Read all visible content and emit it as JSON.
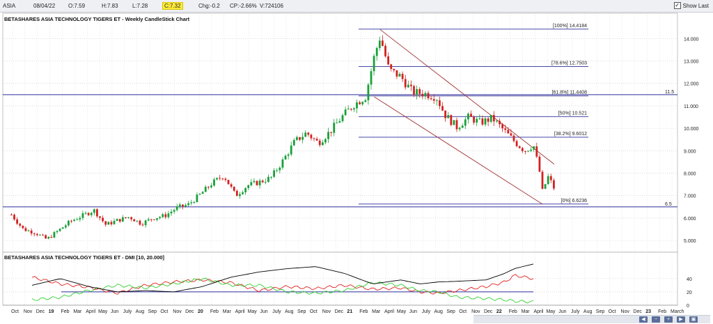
{
  "header": {
    "symbol": "ASIA",
    "date": "08/04/22",
    "open": "O:7.59",
    "high": "H:7.83",
    "low": "L:7.28",
    "close": "C:7.32",
    "change": "Chg:-0.2",
    "change_pct": "CP:-2.66%",
    "volume": "V:724106",
    "show_last_label": "Show Last"
  },
  "colors": {
    "up": "#18a038",
    "down": "#d42020",
    "hline": "#2b2b9c",
    "channel": "#a03030",
    "plus_di": "#e02020",
    "minus_di": "#30d030",
    "adx": "#000000"
  },
  "chart_data": [
    {
      "type": "candlestick",
      "title": "BETASHARES ASIA TECHNOLOGY TIGERS ET - Weekly CandleStick Chart",
      "ylim": [
        4.6,
        14.6
      ],
      "y_ticks": [
        "5.000",
        "6.000",
        "7.000",
        "8.000",
        "9.000",
        "10.000",
        "11.000",
        "12.000",
        "13.000",
        "14.000"
      ],
      "x_ticks": [
        "Oct",
        "Nov",
        "Dec",
        "19",
        "Feb",
        "Mar",
        "April",
        "May",
        "Jun",
        "July",
        "Aug",
        "Sep",
        "Oct",
        "Nov",
        "Dec",
        "20",
        "Feb",
        "Mar",
        "April",
        "May",
        "Jun",
        "July",
        "Aug",
        "Sep",
        "Oct",
        "Nov",
        "Dec",
        "21",
        "Feb",
        "Mar",
        "April",
        "May",
        "Jun",
        "July",
        "Aug",
        "Sep",
        "Oct",
        "Nov",
        "Dec",
        "22",
        "Feb",
        "Mar",
        "April",
        "May",
        "Jun",
        "July",
        "Aug",
        "Sep",
        "Oct",
        "Nov",
        "Dec",
        "23",
        "Feb",
        "March"
      ],
      "bold_ticks": [
        "19",
        "20",
        "21",
        "22",
        "23"
      ],
      "close_trace": [
        [
          "2018-09-28",
          6.15
        ],
        [
          "2018-10-26",
          5.5
        ],
        [
          "2018-11-23",
          5.35
        ],
        [
          "2018-12-21",
          5.05
        ],
        [
          "2019-01-18",
          5.45
        ],
        [
          "2019-02-15",
          5.85
        ],
        [
          "2019-03-15",
          6.1
        ],
        [
          "2019-04-12",
          6.35
        ],
        [
          "2019-05-10",
          5.7
        ],
        [
          "2019-06-07",
          5.9
        ],
        [
          "2019-07-05",
          6.05
        ],
        [
          "2019-08-02",
          5.75
        ],
        [
          "2019-08-30",
          6.0
        ],
        [
          "2019-09-27",
          6.1
        ],
        [
          "2019-10-25",
          6.45
        ],
        [
          "2019-11-22",
          6.6
        ],
        [
          "2019-12-20",
          7.05
        ],
        [
          "2020-01-17",
          7.55
        ],
        [
          "2020-02-14",
          7.9
        ],
        [
          "2020-03-13",
          7.0
        ],
        [
          "2020-04-10",
          7.45
        ],
        [
          "2020-05-08",
          7.6
        ],
        [
          "2020-06-05",
          7.8
        ],
        [
          "2020-07-03",
          8.55
        ],
        [
          "2020-07-31",
          9.4
        ],
        [
          "2020-08-28",
          9.8
        ],
        [
          "2020-09-25",
          9.35
        ],
        [
          "2020-10-23",
          9.85
        ],
        [
          "2020-11-20",
          10.5
        ],
        [
          "2020-12-18",
          11.05
        ],
        [
          "2021-01-15",
          11.4
        ],
        [
          "2021-02-05",
          13.2
        ],
        [
          "2021-02-19",
          14.1
        ],
        [
          "2021-03-12",
          12.6
        ],
        [
          "2021-04-09",
          12.3
        ],
        [
          "2021-05-07",
          11.6
        ],
        [
          "2021-06-04",
          11.55
        ],
        [
          "2021-07-02",
          11.4
        ],
        [
          "2021-07-23",
          10.6
        ],
        [
          "2021-08-20",
          10.05
        ],
        [
          "2021-09-17",
          10.5
        ],
        [
          "2021-10-15",
          10.25
        ],
        [
          "2021-11-12",
          10.45
        ],
        [
          "2021-12-10",
          9.9
        ],
        [
          "2022-01-07",
          9.35
        ],
        [
          "2022-01-28",
          9.0
        ],
        [
          "2022-02-18",
          9.25
        ],
        [
          "2022-03-04",
          8.1
        ],
        [
          "2022-03-11",
          7.2
        ],
        [
          "2022-03-25",
          7.85
        ],
        [
          "2022-04-08",
          7.32
        ]
      ],
      "horizontal_lines": [
        {
          "label": "11.5",
          "value": 11.5
        },
        {
          "label": "6.5",
          "value": 6.5
        }
      ],
      "fibonacci": {
        "levels": [
          {
            "label": "[100%] 14.4184",
            "value": 14.4184
          },
          {
            "label": "[78.6%] 12.7503",
            "value": 12.7503
          },
          {
            "label": "[61.8%] 11.4408",
            "value": 11.4408
          },
          {
            "label": "[50%] 10.521",
            "value": 10.521
          },
          {
            "label": "[38.2%] 9.6012",
            "value": 9.6012
          },
          {
            "label": "[0%] 6.6236",
            "value": 6.6236
          }
        ]
      },
      "channel": {
        "upper": [
          [
            "2021-02-19",
            14.4
          ],
          [
            "2022-04-08",
            8.4
          ]
        ],
        "lower": [
          [
            "2021-02-05",
            11.4
          ],
          [
            "2022-03-11",
            6.62
          ]
        ]
      }
    },
    {
      "type": "line",
      "title": "BETASHARES ASIA TECHNOLOGY TIGERS ET - DMI [10, 20.000]",
      "ylim": [
        0,
        65
      ],
      "y_ticks": [
        "0",
        "20",
        "40"
      ],
      "threshold": 20,
      "series": [
        {
          "values": [
            [
              0,
              42
            ],
            [
              3,
              32
            ],
            [
              6,
              27
            ],
            [
              9,
              18
            ],
            [
              12,
              30
            ],
            [
              15,
              35
            ],
            [
              18,
              38
            ],
            [
              21,
              34
            ],
            [
              24,
              22
            ],
            [
              27,
              28
            ],
            [
              30,
              25
            ],
            [
              33,
              30
            ],
            [
              36,
              24
            ],
            [
              39,
              26
            ],
            [
              41,
              20
            ],
            [
              43,
              18
            ],
            [
              45,
              22
            ],
            [
              48,
              28
            ],
            [
              50,
              35
            ],
            [
              51,
              45
            ],
            [
              53,
              40
            ]
          ]
        },
        {
          "values": [
            [
              0,
              8
            ],
            [
              3,
              12
            ],
            [
              6,
              22
            ],
            [
              9,
              30
            ],
            [
              12,
              26
            ],
            [
              15,
              32
            ],
            [
              18,
              40
            ],
            [
              21,
              30
            ],
            [
              24,
              30
            ],
            [
              27,
              20
            ],
            [
              30,
              18
            ],
            [
              33,
              22
            ],
            [
              36,
              34
            ],
            [
              39,
              30
            ],
            [
              41,
              22
            ],
            [
              43,
              20
            ],
            [
              45,
              12
            ],
            [
              48,
              10
            ],
            [
              50,
              8
            ],
            [
              51,
              6
            ],
            [
              53,
              5
            ]
          ]
        },
        {
          "values": [
            [
              0,
              30
            ],
            [
              3,
              40
            ],
            [
              6,
              28
            ],
            [
              9,
              20
            ],
            [
              12,
              22
            ],
            [
              15,
              20
            ],
            [
              18,
              28
            ],
            [
              21,
              42
            ],
            [
              24,
              50
            ],
            [
              27,
              55
            ],
            [
              30,
              58
            ],
            [
              33,
              48
            ],
            [
              36,
              32
            ],
            [
              39,
              38
            ],
            [
              41,
              32
            ],
            [
              43,
              35
            ],
            [
              45,
              36
            ],
            [
              48,
              38
            ],
            [
              50,
              48
            ],
            [
              51,
              55
            ],
            [
              53,
              62
            ]
          ]
        }
      ]
    }
  ]
}
